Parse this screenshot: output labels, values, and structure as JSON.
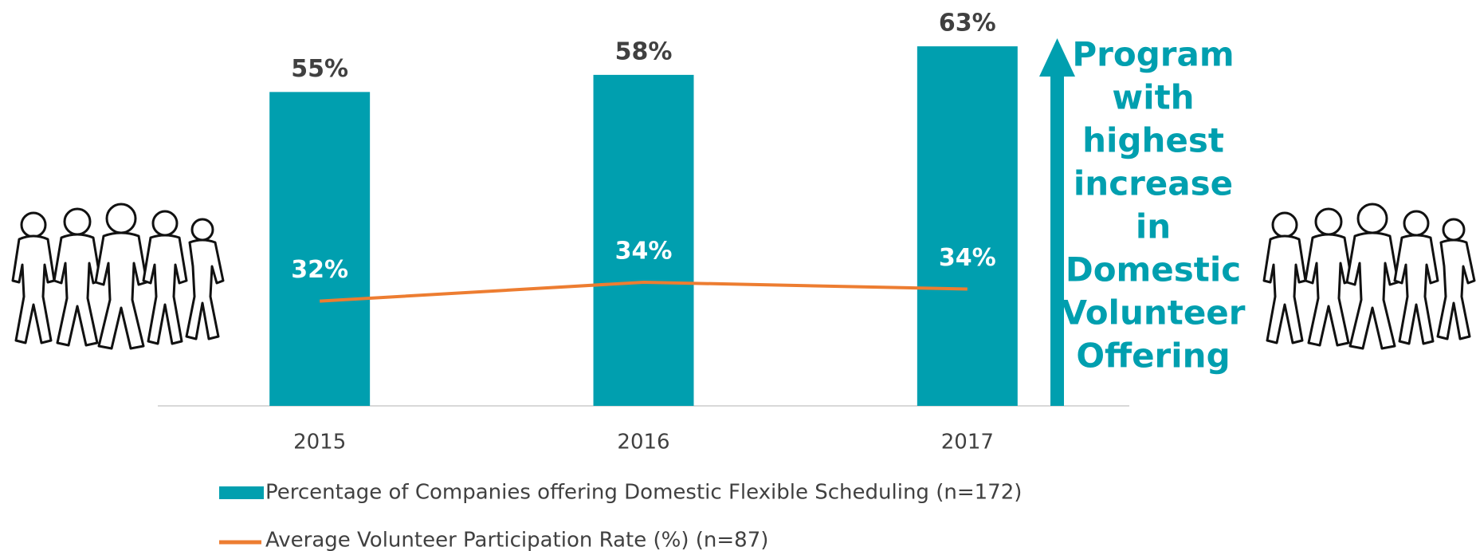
{
  "chart_data": {
    "type": "bar",
    "categories": [
      "2015",
      "2016",
      "2017"
    ],
    "series": [
      {
        "name": "Percentage of Companies offering Domestic Flexible Scheduling (n=172)",
        "type": "bar",
        "color": "#009faf",
        "values": [
          55,
          58,
          63
        ],
        "value_labels": [
          "55%",
          "58%",
          "63%"
        ]
      },
      {
        "name": "Average Volunteer Participation Rate (%) (n=87)",
        "type": "line",
        "axis": "y2",
        "color": "#ed7d31",
        "values": [
          31.9,
          34.4,
          33.5
        ],
        "value_labels": [
          "32%",
          "34%",
          "34%"
        ]
      }
    ],
    "ylim": [
      0,
      70
    ],
    "y2lim": [
      18,
      71
    ],
    "annotation_lines": [
      "Program",
      "with",
      "highest",
      "increase",
      "in",
      "Domestic",
      "Volunteer",
      "Offering"
    ],
    "annotation_color": "#009faf"
  }
}
